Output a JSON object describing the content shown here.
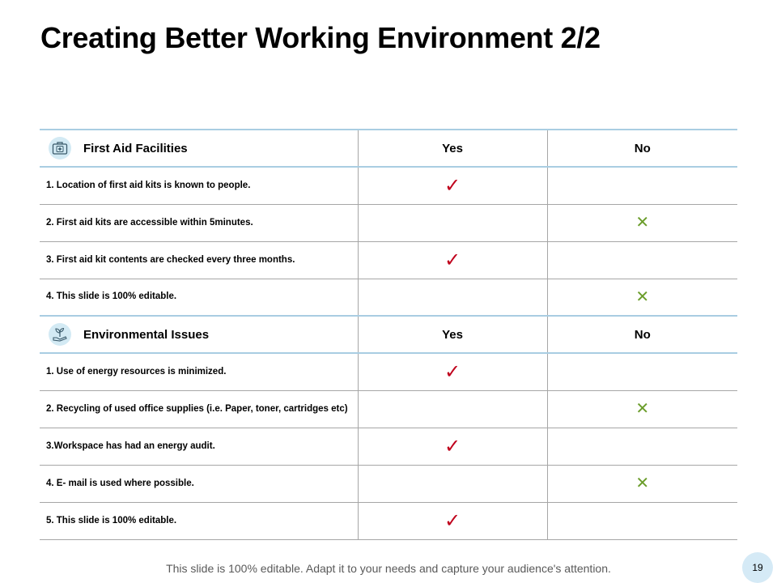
{
  "slide": {
    "title": "Creating Better Working Environment 2/2",
    "footer": "This slide is 100% editable. Adapt it to your needs and capture your audience's attention.",
    "page_number": "19"
  },
  "colors": {
    "check": "#c0001c",
    "cross": "#6b9d2b",
    "header_border": "#a9cde2",
    "icon_bg": "#d3eaf4"
  },
  "sections": [
    {
      "title": "First Aid Facilities",
      "icon": "first-aid-kit-icon",
      "yes_label": "Yes",
      "no_label": "No",
      "rows": [
        {
          "text": "1. Location of first aid kits is known to people.",
          "yes": "✓",
          "no": ""
        },
        {
          "text": "2. First aid kits are accessible  within 5minutes.",
          "yes": "",
          "no": "✕"
        },
        {
          "text": "3. First aid kit contents are checked every three months.",
          "yes": "✓",
          "no": ""
        },
        {
          "text": "4. This slide is 100% editable.",
          "yes": "",
          "no": "✕"
        }
      ]
    },
    {
      "title": "Environmental Issues",
      "icon": "plant-in-hand-icon",
      "yes_label": "Yes",
      "no_label": "No",
      "rows": [
        {
          "text": "1. Use of energy resources is minimized.",
          "yes": "✓",
          "no": ""
        },
        {
          "text": "2. Recycling of used office supplies (i.e. Paper, toner, cartridges etc)",
          "yes": "",
          "no": "✕"
        },
        {
          "text": "3.Workspace has had an energy audit.",
          "yes": "✓",
          "no": ""
        },
        {
          "text": "4. E- mail is used where possible.",
          "yes": "",
          "no": "✕"
        },
        {
          "text": "5. This slide is 100% editable.",
          "yes": "✓",
          "no": ""
        }
      ]
    }
  ]
}
